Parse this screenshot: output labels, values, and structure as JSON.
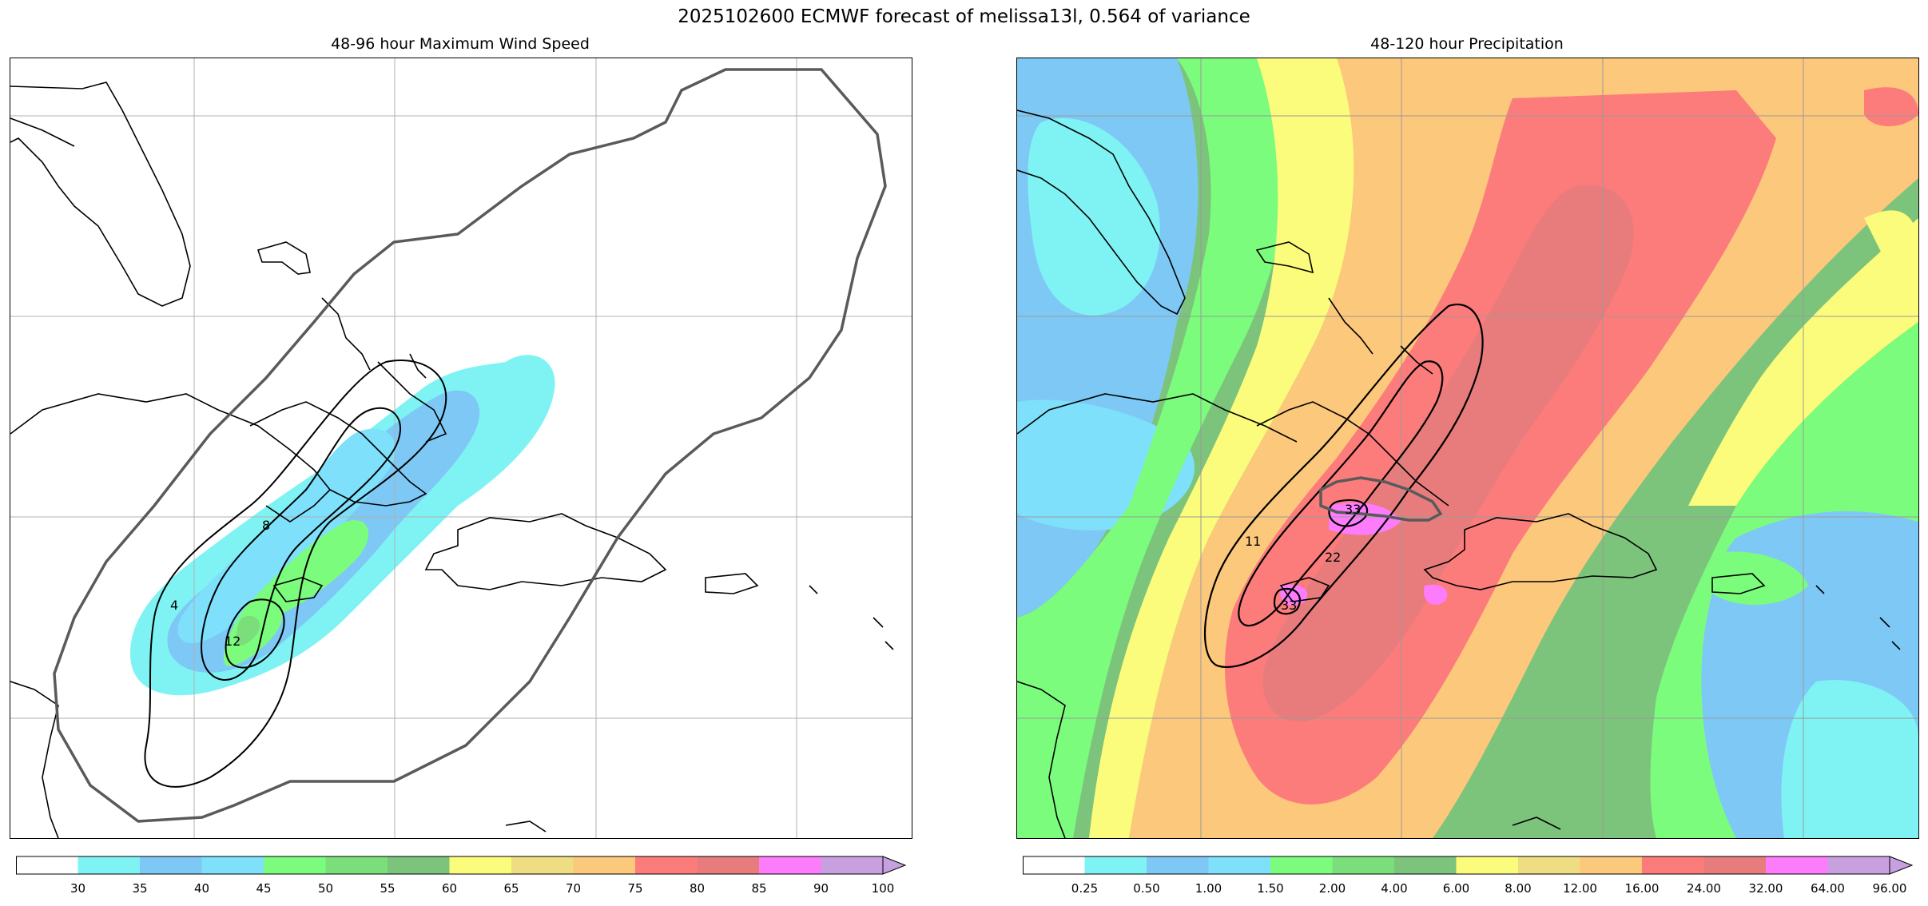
{
  "figure": {
    "title": "2025102600 ECMWF forecast of melissa13l, 0.564 of variance"
  },
  "left_panel": {
    "title": "48-96 hour Maximum Wind Speed",
    "contour_labels": [
      "4",
      "8",
      "12"
    ],
    "colorbar": {
      "ticks": [
        "30",
        "35",
        "40",
        "45",
        "50",
        "55",
        "60",
        "65",
        "70",
        "75",
        "80",
        "85",
        "90",
        "100"
      ],
      "colors": [
        "#ffffff",
        "#7ff3f3",
        "#7ec8f6",
        "#7ee0fb",
        "#7cfc7c",
        "#7adf7a",
        "#7cc47c",
        "#fcfc7c",
        "#eedd82",
        "#fcc87c",
        "#fc7c7c",
        "#e87c7c",
        "#fc7cfc",
        "#c8a0e0"
      ]
    }
  },
  "right_panel": {
    "title": "48-120 hour Precipitation",
    "contour_labels": [
      "11",
      "22",
      "33",
      "33"
    ],
    "colorbar": {
      "ticks": [
        "0.25",
        "0.50",
        "1.00",
        "1.50",
        "2.00",
        "4.00",
        "6.00",
        "8.00",
        "12.00",
        "16.00",
        "24.00",
        "32.00",
        "64.00",
        "96.00"
      ],
      "colors": [
        "#ffffff",
        "#7ff3f3",
        "#7ec8f6",
        "#7ee0fb",
        "#7cfc7c",
        "#7adf7a",
        "#7cc47c",
        "#fcfc7c",
        "#eedd82",
        "#fcc87c",
        "#fc7c7c",
        "#e87c7c",
        "#fc7cfc",
        "#c8a0e0"
      ]
    }
  }
}
